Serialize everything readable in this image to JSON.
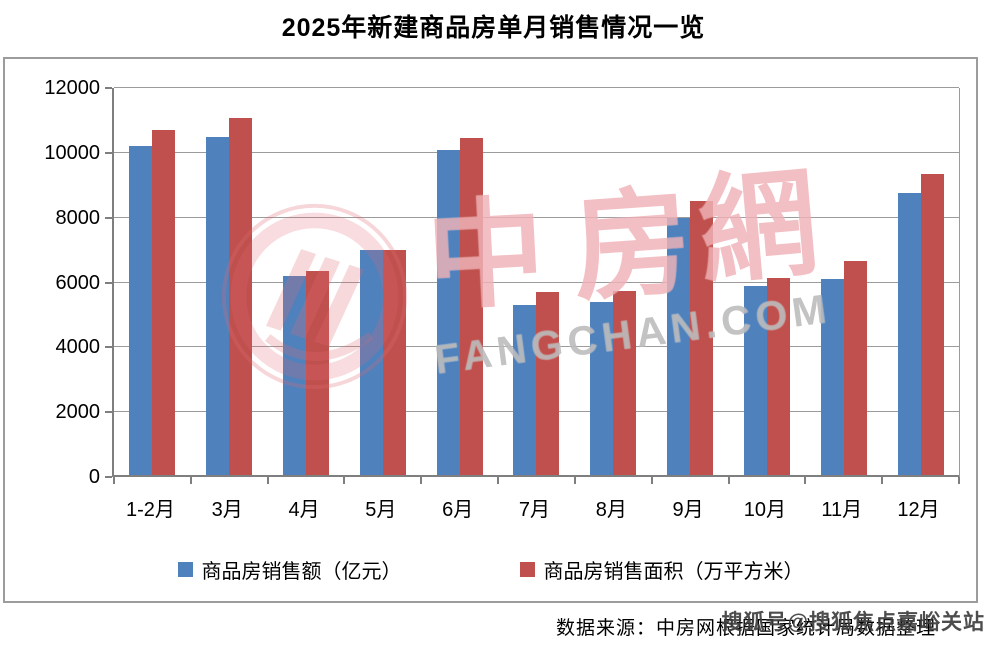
{
  "title": "2025年新建商品房单月销售情况一览",
  "chart_data": {
    "type": "bar",
    "categories": [
      "1-2月",
      "3月",
      "4月",
      "5月",
      "6月",
      "7月",
      "8月",
      "9月",
      "10月",
      "11月",
      "12月"
    ],
    "series": [
      {
        "name": "商品房销售额（亿元）",
        "color": "#4F81BD",
        "values": [
          10220,
          10500,
          6210,
          7000,
          10090,
          5300,
          5400,
          8000,
          5890,
          6100,
          8760
        ]
      },
      {
        "name": "商品房销售面积（万平方米）",
        "color": "#C0504D",
        "values": [
          10690,
          11090,
          6360,
          7010,
          10470,
          5700,
          5740,
          8510,
          6130,
          6670,
          9350
        ]
      }
    ],
    "ylim": [
      0,
      12000
    ],
    "yticks": [
      0,
      2000,
      4000,
      6000,
      8000,
      10000,
      12000
    ],
    "grid": true,
    "legend_position": "bottom",
    "xlabel": "",
    "ylabel": ""
  },
  "watermark": {
    "logo_chars": [
      "中",
      "房",
      "網"
    ],
    "domain": "FANGCHAN.COM",
    "account": "搜狐号@搜狐焦点嘉峪关站"
  },
  "source": "数据来源：中房网根据国家统计局数据整理",
  "colors": {
    "bar_blue": "#4F81BD",
    "bar_red": "#C0504D",
    "gridline": "#9b9b9b",
    "axis": "#7f7f7f",
    "frame_border": "#9c9c9c",
    "watermark_pink": "#df6973",
    "watermark_gray": "#878787"
  }
}
